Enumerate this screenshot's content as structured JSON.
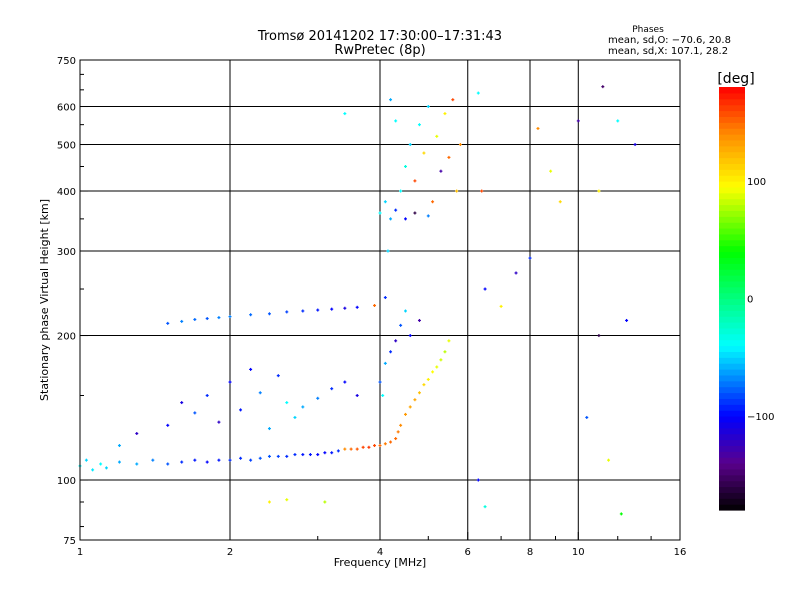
{
  "chart_data": {
    "type": "scatter",
    "title": "Tromsø 20141202 17:30:00–17:31:43",
    "subtitle": "RwPretec (8p)",
    "xlabel": "Frequency [MHz]",
    "ylabel": "Stationary phase Virtual Height [km]",
    "xscale": "log",
    "yscale": "log",
    "xlim": [
      1,
      16
    ],
    "ylim": [
      75,
      750
    ],
    "xticks": [
      1,
      2,
      4,
      6,
      8,
      10,
      16
    ],
    "yticks": [
      75,
      100,
      200,
      300,
      400,
      500,
      600,
      750
    ],
    "grid": true,
    "phase_info": {
      "title": "Phases",
      "o_line": "mean, sd,O: −70.6, 20.8",
      "x_line": "mean, sd,X: 107.1, 28.2"
    },
    "colorbar": {
      "label": "[deg]",
      "range": [
        -180,
        180
      ],
      "ticks": [
        100,
        0,
        -100
      ],
      "tick_labels": [
        "100",
        "0",
        "−100"
      ]
    },
    "points_format": [
      "frequency_MHz",
      "height_km",
      "phase_deg"
    ],
    "points": [
      [
        1.0,
        107,
        -40
      ],
      [
        1.03,
        110,
        -50
      ],
      [
        1.06,
        105,
        -45
      ],
      [
        1.1,
        108,
        -40
      ],
      [
        1.13,
        106,
        -50
      ],
      [
        1.2,
        109,
        -60
      ],
      [
        1.3,
        108,
        -60
      ],
      [
        1.4,
        110,
        -70
      ],
      [
        1.5,
        108,
        -80
      ],
      [
        1.6,
        109,
        -90
      ],
      [
        1.7,
        110,
        -95
      ],
      [
        1.8,
        109,
        -100
      ],
      [
        1.9,
        110,
        -95
      ],
      [
        2.0,
        110,
        -90
      ],
      [
        2.1,
        111,
        -90
      ],
      [
        2.2,
        110,
        -85
      ],
      [
        2.3,
        111,
        -80
      ],
      [
        2.4,
        112,
        -80
      ],
      [
        2.5,
        112,
        -85
      ],
      [
        2.6,
        112,
        -90
      ],
      [
        2.7,
        113,
        -90
      ],
      [
        2.8,
        113,
        -95
      ],
      [
        2.9,
        113,
        -95
      ],
      [
        3.0,
        113,
        -100
      ],
      [
        3.1,
        114,
        -100
      ],
      [
        3.2,
        114,
        -95
      ],
      [
        3.3,
        115,
        -90
      ],
      [
        3.4,
        116,
        140
      ],
      [
        3.5,
        116,
        150
      ],
      [
        3.6,
        116,
        155
      ],
      [
        3.7,
        117,
        160
      ],
      [
        3.8,
        117,
        165
      ],
      [
        3.9,
        118,
        160
      ],
      [
        4.0,
        118,
        150
      ],
      [
        4.1,
        119,
        145
      ],
      [
        4.2,
        120,
        150
      ],
      [
        4.3,
        122,
        150
      ],
      [
        4.35,
        126,
        145
      ],
      [
        4.4,
        130,
        140
      ],
      [
        4.5,
        137,
        135
      ],
      [
        4.6,
        142,
        130
      ],
      [
        4.7,
        147,
        130
      ],
      [
        4.8,
        152,
        120
      ],
      [
        4.9,
        158,
        110
      ],
      [
        5.0,
        162,
        100
      ],
      [
        5.1,
        168,
        95
      ],
      [
        5.2,
        172,
        90
      ],
      [
        5.3,
        178,
        85
      ],
      [
        5.4,
        185,
        80
      ],
      [
        5.5,
        195,
        90
      ],
      [
        1.5,
        212,
        -80
      ],
      [
        1.6,
        214,
        -70
      ],
      [
        1.7,
        216,
        -75
      ],
      [
        1.8,
        217,
        -80
      ],
      [
        1.9,
        218,
        -70
      ],
      [
        2.0,
        219,
        -70
      ],
      [
        2.2,
        221,
        -75
      ],
      [
        2.4,
        222,
        -80
      ],
      [
        2.6,
        224,
        -85
      ],
      [
        2.8,
        225,
        -90
      ],
      [
        3.0,
        226,
        -95
      ],
      [
        3.2,
        227,
        -100
      ],
      [
        3.4,
        228,
        -110
      ],
      [
        3.6,
        229,
        -100
      ],
      [
        3.9,
        231,
        150
      ],
      [
        1.5,
        130,
        -100
      ],
      [
        1.6,
        145,
        -110
      ],
      [
        1.7,
        138,
        -80
      ],
      [
        1.8,
        150,
        -90
      ],
      [
        1.9,
        132,
        -120
      ],
      [
        2.0,
        160,
        -100
      ],
      [
        2.1,
        140,
        -95
      ],
      [
        2.3,
        152,
        -70
      ],
      [
        2.4,
        128,
        -60
      ],
      [
        2.5,
        165,
        -90
      ],
      [
        2.6,
        145,
        -40
      ],
      [
        2.7,
        135,
        -50
      ],
      [
        2.8,
        142,
        -60
      ],
      [
        3.0,
        148,
        -70
      ],
      [
        3.2,
        155,
        -90
      ],
      [
        3.4,
        160,
        -100
      ],
      [
        3.6,
        150,
        -110
      ],
      [
        1.3,
        125,
        -120
      ],
      [
        1.2,
        118,
        -60
      ],
      [
        2.2,
        170,
        -100
      ],
      [
        4.0,
        160,
        -80
      ],
      [
        4.1,
        175,
        -60
      ],
      [
        4.2,
        185,
        -90
      ],
      [
        4.3,
        195,
        -120
      ],
      [
        4.4,
        210,
        -80
      ],
      [
        4.5,
        225,
        -50
      ],
      [
        4.6,
        200,
        -100
      ],
      [
        4.8,
        215,
        -130
      ],
      [
        4.1,
        240,
        -90
      ],
      [
        4.05,
        150,
        -40
      ],
      [
        4.0,
        360,
        -40
      ],
      [
        4.1,
        380,
        -50
      ],
      [
        4.2,
        350,
        -60
      ],
      [
        4.3,
        365,
        -90
      ],
      [
        4.4,
        400,
        -40
      ],
      [
        4.5,
        450,
        -30
      ],
      [
        4.6,
        500,
        -50
      ],
      [
        4.7,
        420,
        160
      ],
      [
        4.8,
        550,
        -40
      ],
      [
        4.9,
        480,
        110
      ],
      [
        5.0,
        600,
        -50
      ],
      [
        5.1,
        380,
        150
      ],
      [
        5.2,
        520,
        90
      ],
      [
        5.3,
        440,
        -130
      ],
      [
        5.4,
        580,
        100
      ],
      [
        5.5,
        470,
        150
      ],
      [
        5.6,
        620,
        160
      ],
      [
        5.7,
        400,
        120
      ],
      [
        5.8,
        500,
        140
      ],
      [
        4.2,
        620,
        -60
      ],
      [
        4.3,
        560,
        -40
      ],
      [
        4.5,
        350,
        -100
      ],
      [
        4.7,
        360,
        -160
      ],
      [
        5.0,
        355,
        -70
      ],
      [
        4.15,
        300,
        -50
      ],
      [
        6.3,
        640,
        -40
      ],
      [
        6.4,
        400,
        160
      ],
      [
        6.5,
        250,
        -100
      ],
      [
        7.0,
        230,
        100
      ],
      [
        7.5,
        270,
        -120
      ],
      [
        8.0,
        290,
        -90
      ],
      [
        8.3,
        540,
        140
      ],
      [
        8.8,
        440,
        90
      ],
      [
        9.2,
        380,
        110
      ],
      [
        10.0,
        560,
        -130
      ],
      [
        11.0,
        400,
        100
      ],
      [
        11.2,
        660,
        -150
      ],
      [
        12.0,
        560,
        -40
      ],
      [
        13.0,
        500,
        -110
      ],
      [
        12.5,
        215,
        -100
      ],
      [
        11.0,
        200,
        -160
      ],
      [
        10.4,
        135,
        -80
      ],
      [
        11.5,
        110,
        90
      ],
      [
        12.2,
        85,
        40
      ],
      [
        6.3,
        100,
        -100
      ],
      [
        6.5,
        88,
        -30
      ],
      [
        2.4,
        90,
        100
      ],
      [
        2.6,
        91,
        90
      ],
      [
        3.1,
        90,
        80
      ],
      [
        3.4,
        580,
        -40
      ]
    ]
  }
}
